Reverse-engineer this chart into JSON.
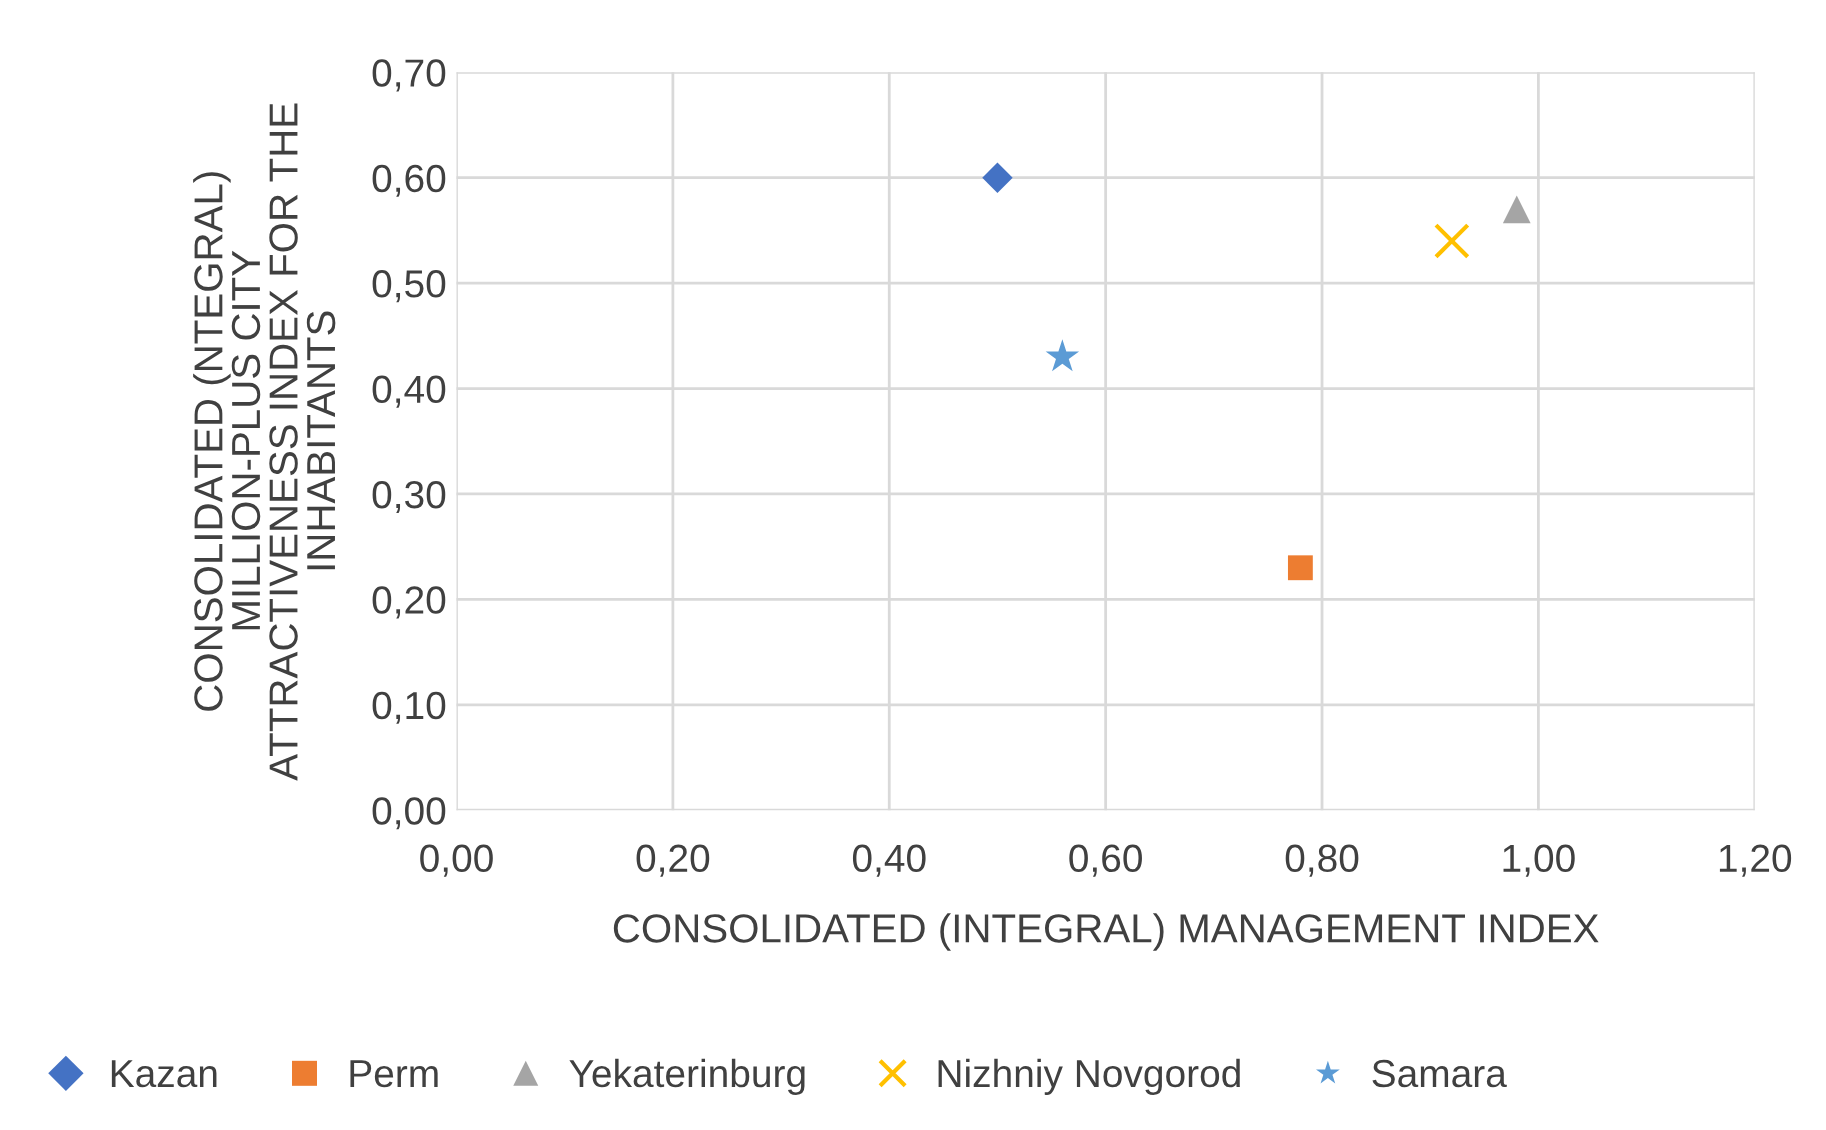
{
  "chart_data": {
    "type": "scatter",
    "xlabel": "CONSOLIDATED (INTEGRAL) MANAGEMENT INDEX",
    "ylabel": "CONSOLIDATED (NTEGRAL)\nMILLION-PLUS CITY\nATTRACTIVENESS INDEX FOR THE\nINHABITANTS",
    "series": [
      {
        "name": "Kazan",
        "color": "#4472c4",
        "marker": "diamond",
        "x": [
          0.5
        ],
        "values": [
          0.6
        ]
      },
      {
        "name": "Perm",
        "color": "#ed7d31",
        "marker": "square",
        "x": [
          0.78
        ],
        "values": [
          0.23
        ]
      },
      {
        "name": "Yekaterinburg",
        "color": "#a5a5a5",
        "marker": "triangle",
        "x": [
          0.98
        ],
        "values": [
          0.57
        ]
      },
      {
        "name": "Nizhniy Novgorod",
        "color": "#ffc000",
        "marker": "cross",
        "x": [
          0.92
        ],
        "values": [
          0.54
        ]
      },
      {
        "name": "Samara",
        "color": "#5b9bd5",
        "marker": "star",
        "x": [
          0.56
        ],
        "values": [
          0.43
        ]
      }
    ],
    "xlim": [
      0,
      1.2
    ],
    "xticks": [
      {
        "value": 0,
        "label": "0,00"
      },
      {
        "value": 0.2,
        "label": "0,20"
      },
      {
        "value": 0.4,
        "label": "0,40"
      },
      {
        "value": 0.6,
        "label": "0,60"
      },
      {
        "value": 0.8,
        "label": "0,80"
      },
      {
        "value": 1.0,
        "label": "1,00"
      },
      {
        "value": 1.2,
        "label": "1,20"
      }
    ],
    "ylim": [
      0,
      0.7
    ],
    "yticks": [
      {
        "value": 0,
        "label": "0,00"
      },
      {
        "value": 0.1,
        "label": "0,10"
      },
      {
        "value": 0.2,
        "label": "0,20"
      },
      {
        "value": 0.3,
        "label": "0,30"
      },
      {
        "value": 0.4,
        "label": "0,40"
      },
      {
        "value": 0.5,
        "label": "0,50"
      },
      {
        "value": 0.6,
        "label": "0,60"
      },
      {
        "value": 0.7,
        "label": "0,70"
      }
    ],
    "grid": true,
    "legend": "bottom"
  }
}
